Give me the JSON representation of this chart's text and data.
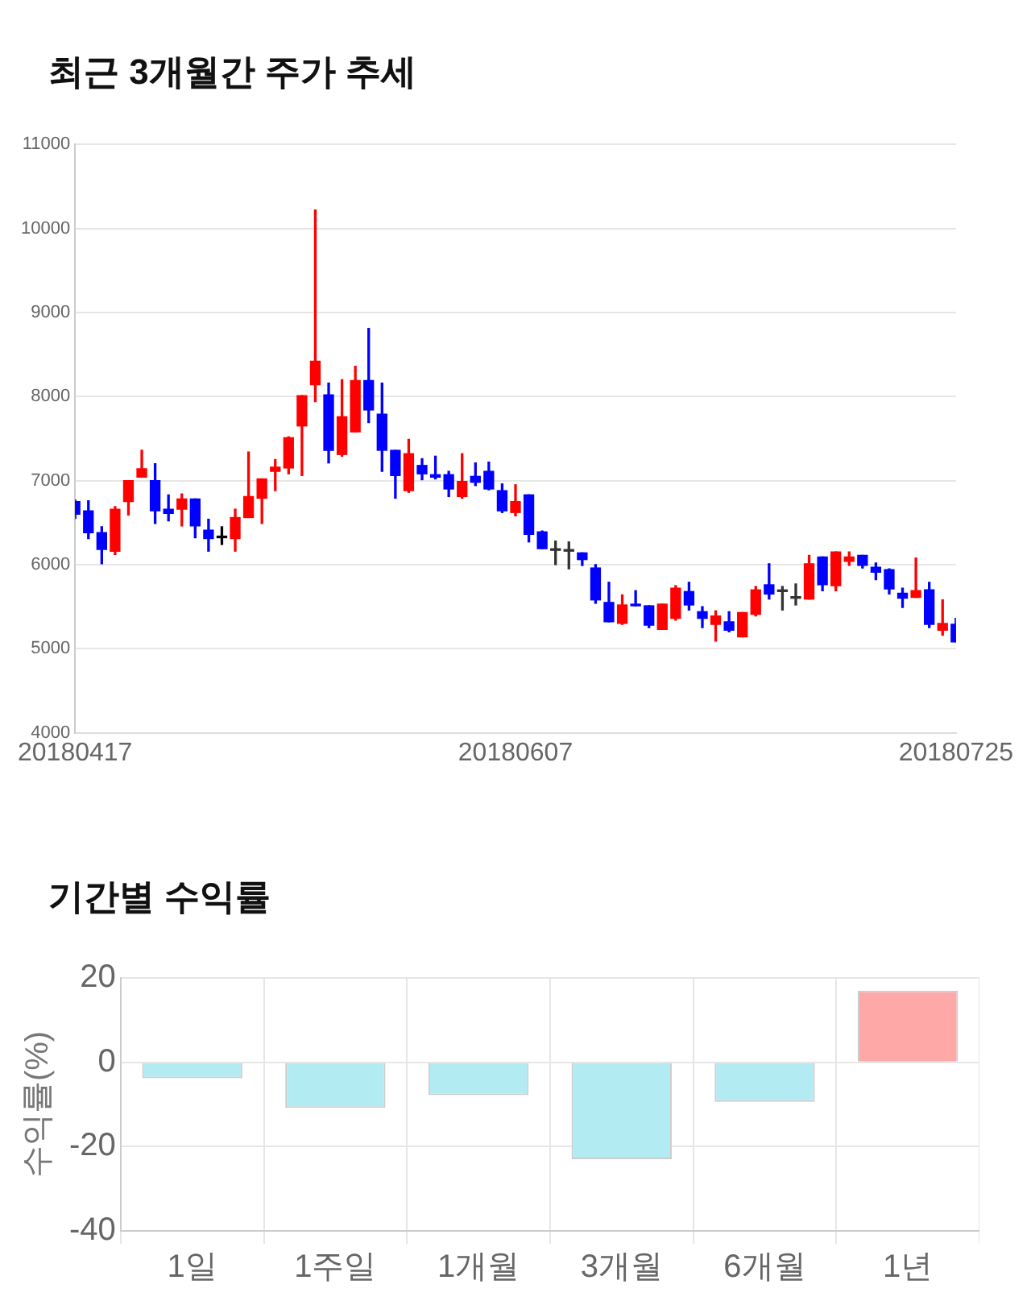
{
  "chart_data": [
    {
      "type": "candlestick",
      "title": "최근 3개월간 주가 추세",
      "categories": [
        "20180417",
        null,
        null,
        null,
        null,
        null,
        null,
        null,
        null,
        null,
        null,
        null,
        null,
        null,
        null,
        null,
        null,
        null,
        null,
        null,
        null,
        null,
        null,
        null,
        null,
        null,
        null,
        null,
        null,
        null,
        null,
        null,
        null,
        "20180607",
        null,
        null,
        null,
        null,
        null,
        null,
        null,
        null,
        null,
        null,
        null,
        null,
        null,
        null,
        null,
        null,
        null,
        null,
        null,
        null,
        null,
        null,
        null,
        null,
        null,
        null,
        null,
        null,
        null,
        null,
        null,
        null,
        "20180725"
      ],
      "ohlc": [
        [
          6750,
          6770,
          6550,
          6600
        ],
        [
          6640,
          6760,
          6310,
          6380
        ],
        [
          6380,
          6450,
          6010,
          6180
        ],
        [
          6160,
          6690,
          6120,
          6660
        ],
        [
          6750,
          7000,
          6590,
          7000
        ],
        [
          7040,
          7360,
          7040,
          7140
        ],
        [
          7000,
          7200,
          6490,
          6640
        ],
        [
          6660,
          6830,
          6520,
          6610
        ],
        [
          6660,
          6840,
          6460,
          6780
        ],
        [
          6780,
          6780,
          6320,
          6460
        ],
        [
          6410,
          6540,
          6160,
          6310
        ],
        [
          6320,
          6450,
          6240,
          6320
        ],
        [
          6310,
          6660,
          6160,
          6560
        ],
        [
          6560,
          7340,
          6560,
          6810
        ],
        [
          6790,
          7020,
          6490,
          7020
        ],
        [
          7110,
          7250,
          6880,
          7160
        ],
        [
          7150,
          7520,
          7080,
          7510
        ],
        [
          7650,
          8010,
          7060,
          8010
        ],
        [
          8140,
          10220,
          7940,
          8420
        ],
        [
          8020,
          8160,
          7210,
          7360
        ],
        [
          7310,
          8200,
          7290,
          7760
        ],
        [
          7580,
          8360,
          7580,
          8190
        ],
        [
          8190,
          8810,
          7690,
          7840
        ],
        [
          7790,
          8160,
          7110,
          7360
        ],
        [
          7360,
          7360,
          6790,
          7060
        ],
        [
          6880,
          7490,
          6860,
          7320
        ],
        [
          7180,
          7260,
          7010,
          7080
        ],
        [
          7070,
          7290,
          7020,
          7040
        ],
        [
          7070,
          7110,
          6810,
          6900
        ],
        [
          6810,
          7320,
          6790,
          6990
        ],
        [
          7050,
          7210,
          6940,
          6980
        ],
        [
          7110,
          7220,
          6890,
          6900
        ],
        [
          6880,
          6960,
          6620,
          6640
        ],
        [
          6620,
          6950,
          6580,
          6750
        ],
        [
          6830,
          6830,
          6270,
          6360
        ],
        [
          6390,
          6400,
          6190,
          6190
        ],
        [
          6170,
          6280,
          6000,
          6170
        ],
        [
          6160,
          6270,
          5950,
          6160
        ],
        [
          6140,
          6140,
          5990,
          6060
        ],
        [
          5960,
          6000,
          5540,
          5580
        ],
        [
          5550,
          5790,
          5320,
          5320
        ],
        [
          5300,
          5640,
          5290,
          5520
        ],
        [
          5530,
          5690,
          5510,
          5510
        ],
        [
          5510,
          5510,
          5250,
          5280
        ],
        [
          5230,
          5530,
          5230,
          5530
        ],
        [
          5360,
          5750,
          5340,
          5720
        ],
        [
          5680,
          5790,
          5460,
          5520
        ],
        [
          5440,
          5500,
          5250,
          5360
        ],
        [
          5290,
          5450,
          5090,
          5390
        ],
        [
          5320,
          5440,
          5200,
          5220
        ],
        [
          5140,
          5430,
          5140,
          5430
        ],
        [
          5410,
          5740,
          5390,
          5700
        ],
        [
          5760,
          6010,
          5590,
          5650
        ],
        [
          5680,
          5740,
          5460,
          5680
        ],
        [
          5600,
          5770,
          5520,
          5600
        ],
        [
          5590,
          6110,
          5590,
          6010
        ],
        [
          6090,
          6090,
          5690,
          5760
        ],
        [
          5750,
          6150,
          5690,
          6150
        ],
        [
          6040,
          6150,
          5990,
          6090
        ],
        [
          6110,
          6110,
          5960,
          5990
        ],
        [
          5970,
          6020,
          5820,
          5910
        ],
        [
          5940,
          5950,
          5650,
          5710
        ],
        [
          5660,
          5720,
          5490,
          5600
        ],
        [
          5610,
          6080,
          5610,
          5690
        ],
        [
          5700,
          5790,
          5250,
          5290
        ],
        [
          5220,
          5580,
          5160,
          5300
        ],
        [
          5290,
          5360,
          5080,
          5080
        ]
      ],
      "colors": [
        "#0000ff",
        "#0000ff",
        "#0000ff",
        "#ff0000",
        "#ff0000",
        "#ff0000",
        "#0000ff",
        "#0000ff",
        "#ff0000",
        "#0000ff",
        "#0000ff",
        "#000000",
        "#ff0000",
        "#ff0000",
        "#ff0000",
        "#ff0000",
        "#ff0000",
        "#ff0000",
        "#ff0000",
        "#0000ff",
        "#ff0000",
        "#ff0000",
        "#0000ff",
        "#0000ff",
        "#0000ff",
        "#ff0000",
        "#0000ff",
        "#0000ff",
        "#0000ff",
        "#ff0000",
        "#0000ff",
        "#0000ff",
        "#0000ff",
        "#ff0000",
        "#0000ff",
        "#0000ff",
        "#333333",
        "#333333",
        "#0000ff",
        "#0000ff",
        "#0000ff",
        "#ff0000",
        "#0000ff",
        "#0000ff",
        "#ff0000",
        "#ff0000",
        "#0000ff",
        "#0000ff",
        "#ff0000",
        "#0000ff",
        "#ff0000",
        "#ff0000",
        "#0000ff",
        "#333333",
        "#333333",
        "#ff0000",
        "#0000ff",
        "#ff0000",
        "#ff0000",
        "#0000ff",
        "#0000ff",
        "#0000ff",
        "#0000ff",
        "#ff0000",
        "#0000ff",
        "#ff0000",
        "#0000ff"
      ],
      "ylim": [
        4000,
        11000
      ],
      "yticks": [
        4000,
        5000,
        6000,
        7000,
        8000,
        9000,
        10000,
        11000
      ],
      "grid": "y"
    },
    {
      "type": "bar",
      "title": "기간별 수익률",
      "ylabel": "수익률(%)",
      "categories": [
        "1일",
        "1주일",
        "1개월",
        "3개월",
        "6개월",
        "1년"
      ],
      "values": [
        -3.8,
        -10.8,
        -7.8,
        -23,
        -9.4,
        17
      ],
      "colors": [
        "#b3ebf3",
        "#b3ebf3",
        "#b3ebf3",
        "#b3ebf3",
        "#b3ebf3",
        "#ffa8a8"
      ],
      "ylim": [
        -40,
        20
      ],
      "yticks": [
        -40,
        -20,
        0,
        20
      ],
      "grid": true
    }
  ]
}
